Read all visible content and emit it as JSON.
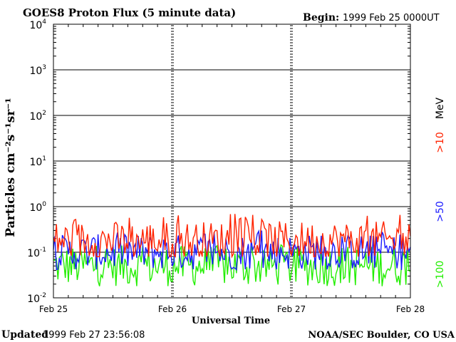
{
  "header": {
    "title": "GOES8 Proton Flux (5 minute data)",
    "begin_label": "Begin:",
    "begin_value": "1999 Feb 25 0000UT"
  },
  "footer": {
    "updated_label": "Updated",
    "updated_value": "1999 Feb 27 23:56:08",
    "credit": "NOAA/SEC Boulder, CO USA"
  },
  "colors": {
    "gt10": "#ff2200",
    "gt50": "#1a1aff",
    "gt100": "#22ee00",
    "axis": "#000000"
  },
  "chart_data": {
    "type": "line",
    "title": "GOES8 Proton Flux (5 minute data)",
    "xlabel": "Universal Time",
    "ylabel": "Particles cm⁻²s⁻¹sr⁻¹",
    "yscale": "log",
    "ylim": [
      0.01,
      10000
    ],
    "grid": true,
    "x_ticks": [
      "Feb 25",
      "Feb 26",
      "Feb 27",
      "Feb 28"
    ],
    "y_ticks": [
      {
        "base": "10",
        "exp": "-2",
        "value": 0.01
      },
      {
        "base": "10",
        "exp": "-1",
        "value": 0.1
      },
      {
        "base": "10",
        "exp": "0",
        "value": 1
      },
      {
        "base": "10",
        "exp": "1",
        "value": 10
      },
      {
        "base": "10",
        "exp": "2",
        "value": 100
      },
      {
        "base": "10",
        "exp": "3",
        "value": 1000
      },
      {
        "base": "10",
        "exp": "4",
        "value": 10000
      }
    ],
    "legend_unit": "MeV",
    "series": [
      {
        "name": ">10",
        "key": "gt10",
        "typical": 0.18,
        "range": [
          0.08,
          0.7
        ]
      },
      {
        "name": ">50",
        "key": "gt50",
        "typical": 0.1,
        "range": [
          0.04,
          0.3
        ]
      },
      {
        "name": ">100",
        "key": "gt100",
        "typical": 0.05,
        "range": [
          0.015,
          0.15
        ]
      }
    ]
  }
}
